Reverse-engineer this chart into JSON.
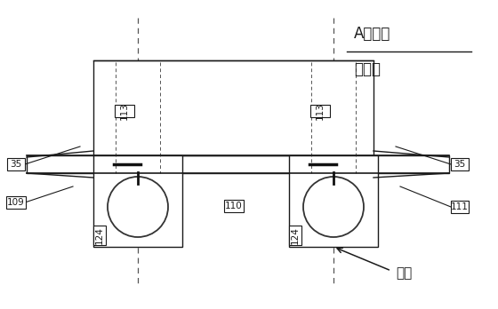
{
  "bg_color": "#ffffff",
  "line_color": "#1a1a1a",
  "dashed_color": "#555555",
  "fig_width": 5.6,
  "fig_height": 3.48,
  "dpi": 100,
  "text_A_plane": "A平面磨",
  "text_light": "光顶紧",
  "text_slope": "坡口",
  "label_109": "109",
  "label_110": "110",
  "label_111": "111",
  "label_113a": "113",
  "label_113b": "113",
  "label_124a": "124",
  "label_124b": "124",
  "label_35a": "35",
  "label_35b": "35"
}
